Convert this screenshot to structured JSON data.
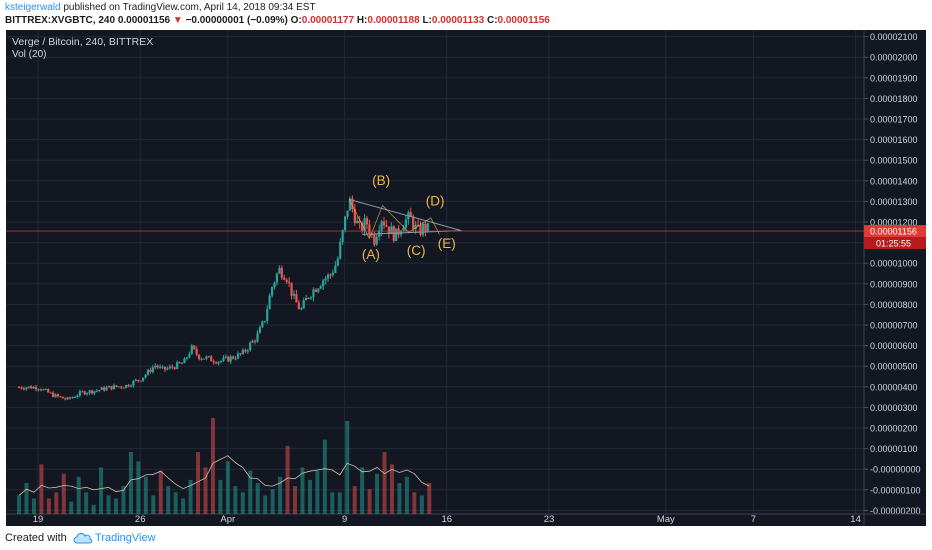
{
  "header": {
    "author": "ksteigerwald",
    "published": "published on TradingView.com, April 14, 2018 09:34 EST",
    "symbol": "BITTREX:XVGBTC, 240",
    "last": "0.00001156",
    "change": "−0.00000001 (−0.09%)",
    "o_label": "O:",
    "o": "0.00001177",
    "h_label": "H:",
    "h": "0.00001188",
    "l_label": "L:",
    "l": "0.00001133",
    "c_label": "C:",
    "c": "0.00001156"
  },
  "chart_title": "Verge / Bitcoin, 240, BITTREX",
  "vol_label": "Vol (20)",
  "price_tag": "0.00001156",
  "countdown": "01:25:55",
  "colors": {
    "bg": "#131722",
    "up": "#26a69a",
    "down": "#ef5350",
    "annotation": "#f0b74b",
    "price": "#e53935"
  },
  "footer": {
    "created": "Created with",
    "brand": "TradingView"
  },
  "chart_data": {
    "type": "candlestick",
    "title": "Verge / Bitcoin, 240, BITTREX",
    "ylim": [
      -3e-06,
      2.1e-05
    ],
    "y_ticks": [
      "0.00002100",
      "0.00002000",
      "0.00001900",
      "0.00001800",
      "0.00001700",
      "0.00001600",
      "0.00001500",
      "0.00001400",
      "0.00001300",
      "0.00001200",
      "0.00001100",
      "0.00001000",
      "0.00000900",
      "0.00000800",
      "0.00000700",
      "0.00000600",
      "0.00000500",
      "0.00000400",
      "0.00000300",
      "0.00000200",
      "0.00000100",
      "-0.00000000",
      "-0.00000100",
      "-0.00000200"
    ],
    "x_ticks": [
      "19",
      "26",
      "Apr",
      "9",
      "16",
      "23",
      "May",
      "7",
      "14"
    ],
    "x_tick_days": [
      0,
      7,
      13,
      21,
      28,
      35,
      43,
      49,
      56
    ],
    "days_visible": [
      -1.3,
      59.0
    ],
    "price_path": [
      [
        0,
        3.98e-06
      ],
      [
        1,
        3.6e-06
      ],
      [
        2,
        3.38e-06
      ],
      [
        3,
        3.72e-06
      ],
      [
        4,
        3.82e-06
      ],
      [
        5,
        3.98e-06
      ],
      [
        6,
        4.05e-06
      ],
      [
        7,
        4.38e-06
      ],
      [
        7.5,
        4.68e-06
      ],
      [
        8,
        5.05e-06
      ],
      [
        8.5,
        4.83e-06
      ],
      [
        9,
        4.9e-06
      ],
      [
        10,
        5.18e-06
      ],
      [
        10.5,
        5.88e-06
      ],
      [
        11,
        5.48e-06
      ],
      [
        12,
        5.3e-06
      ],
      [
        12.5,
        5.25e-06
      ],
      [
        13,
        5.35e-06
      ],
      [
        14,
        5.6e-06
      ],
      [
        15,
        6.45e-06
      ],
      [
        15.5,
        7.2e-06
      ],
      [
        16,
        8.8e-06
      ],
      [
        16.5,
        9.7e-06
      ],
      [
        17,
        9.4e-06
      ],
      [
        17.5,
        8.3e-06
      ],
      [
        18,
        7.7e-06
      ],
      [
        18.5,
        8.42e-06
      ],
      [
        19,
        8.8e-06
      ],
      [
        19.5,
        9.2e-06
      ],
      [
        20,
        9.4e-06
      ],
      [
        20.5,
        1.01e-05
      ],
      [
        21,
        1.195e-05
      ],
      [
        21.3,
        1.31e-05
      ],
      [
        21.7,
        1.23e-05
      ],
      [
        22,
        1.16e-05
      ],
      [
        22.5,
        1.2e-05
      ],
      [
        23,
        1.11e-05
      ],
      [
        23.5,
        1.225e-05
      ],
      [
        24,
        1.17e-05
      ],
      [
        24.5,
        1.13e-05
      ],
      [
        25,
        1.2e-05
      ],
      [
        25.5,
        1.22e-05
      ],
      [
        26,
        1.15e-05
      ],
      [
        26.5,
        1.177e-05
      ],
      [
        26.8,
        1.156e-05
      ]
    ],
    "volume_series": {
      "name": "Vol (20)",
      "ma_period": 20,
      "values_btc": [
        12,
        20,
        10,
        32,
        10,
        14,
        26,
        8,
        24,
        14,
        6,
        30,
        12,
        10,
        18,
        40,
        34,
        24,
        12,
        28,
        18,
        14,
        10,
        22,
        40,
        30,
        62,
        22,
        34,
        18,
        14,
        28,
        20,
        12,
        16,
        24,
        44,
        18,
        30,
        22,
        28,
        48,
        14,
        14,
        60,
        18,
        30,
        16,
        26,
        40,
        32,
        20,
        24,
        14,
        12,
        20
      ]
    },
    "annotations": [
      {
        "label": "(A)",
        "day": 22.8,
        "price": 1.02e-05
      },
      {
        "label": "(B)",
        "day": 23.5,
        "price": 1.38e-05
      },
      {
        "label": "(C)",
        "day": 25.9,
        "price": 1.04e-05
      },
      {
        "label": "(D)",
        "day": 27.2,
        "price": 1.28e-05
      },
      {
        "label": "(E)",
        "day": 28.0,
        "price": 1.075e-05
      }
    ],
    "triangle_lines": [
      [
        [
          21.3,
          1.31e-05
        ],
        [
          29.0,
          1.158e-05
        ]
      ],
      [
        [
          22.2,
          1.14e-05
        ],
        [
          29.0,
          1.158e-05
        ]
      ]
    ]
  }
}
